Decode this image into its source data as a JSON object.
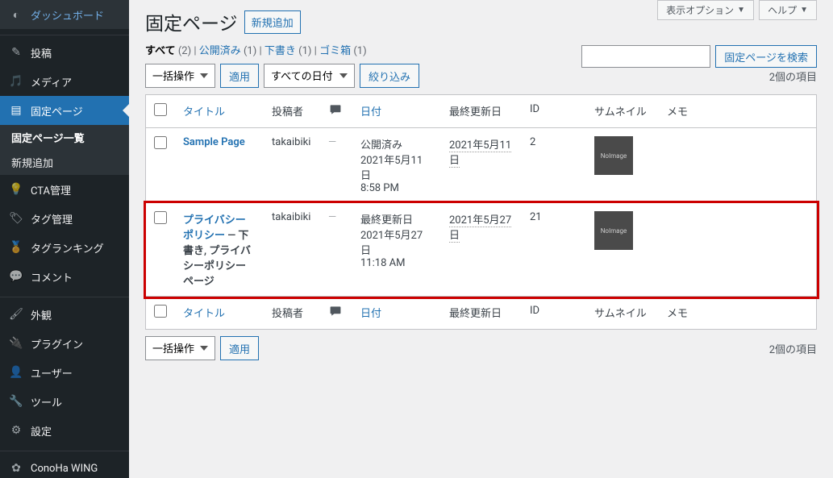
{
  "sidebar": {
    "items": [
      {
        "icon": "dashboard",
        "label": "ダッシュボード"
      },
      {
        "icon": "pin",
        "label": "投稿"
      },
      {
        "icon": "media",
        "label": "メディア"
      },
      {
        "icon": "page",
        "label": "固定ページ",
        "current": true
      },
      {
        "icon": "bulb",
        "label": "CTA管理"
      },
      {
        "icon": "tag",
        "label": "タグ管理"
      },
      {
        "icon": "medal",
        "label": "タグランキング"
      },
      {
        "icon": "comment",
        "label": "コメント"
      },
      {
        "icon": "brush",
        "label": "外観"
      },
      {
        "icon": "plugin",
        "label": "プラグイン"
      },
      {
        "icon": "user",
        "label": "ユーザー"
      },
      {
        "icon": "tool",
        "label": "ツール"
      },
      {
        "icon": "settings",
        "label": "設定"
      },
      {
        "icon": "conoha",
        "label": "ConoHa WING"
      }
    ],
    "submenu": [
      {
        "label": "固定ページ一覧",
        "current": true
      },
      {
        "label": "新規追加"
      }
    ]
  },
  "screen_options": "表示オプション",
  "help": "ヘルプ",
  "page_title": "固定ページ",
  "add_new": "新規追加",
  "filters": {
    "all_label": "すべて",
    "all_count": "(2)",
    "published_label": "公開済み",
    "published_count": "(1)",
    "draft_label": "下書き",
    "draft_count": "(1)",
    "trash_label": "ゴミ箱",
    "trash_count": "(1)"
  },
  "search": {
    "placeholder": "",
    "button": "固定ページを検索"
  },
  "bulk": {
    "action": "一括操作",
    "apply": "適用",
    "date_filter": "すべての日付",
    "filter": "絞り込み"
  },
  "items_count": "2個の項目",
  "columns": {
    "title": "タイトル",
    "author": "投稿者",
    "comments": "",
    "date": "日付",
    "modified": "最終更新日",
    "id": "ID",
    "thumbnail": "サムネイル",
    "memo": "メモ"
  },
  "rows": [
    {
      "title": "Sample Page",
      "state": "",
      "author": "takaibiki",
      "comments": "—",
      "date_status": "公開済み",
      "date": "2021年5月11日",
      "time": "8:58 PM",
      "modified": "2021年5月11日",
      "id": "2",
      "thumb": "NoImage"
    },
    {
      "title": "プライバシーポリシー",
      "state": " — 下書き, プライバシーポリシーページ",
      "author": "takaibiki",
      "comments": "—",
      "date_status": "最終更新日",
      "date": "2021年5月27日",
      "time": "11:18 AM",
      "modified": "2021年5月27日",
      "id": "21",
      "thumb": "NoImage",
      "highlight": true
    }
  ]
}
